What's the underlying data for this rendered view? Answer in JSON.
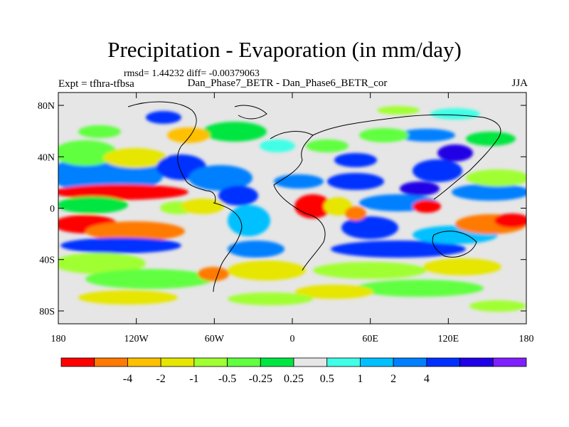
{
  "title": "Precipitation - Evaporation (in mm/day)",
  "stats": "rmsd= 1.44232 diff= -0.00379063",
  "experiment": "Expt = tfhra-tfbsa",
  "subtitle": "Dan_Phase7_BETR - Dan_Phase6_BETR_cor",
  "season": "JJA",
  "map": {
    "background_color": "#e6e6e6",
    "lat_ticks": [
      {
        "label": "80N",
        "lat": 80
      },
      {
        "label": "40N",
        "lat": 40
      },
      {
        "label": "0",
        "lat": 0
      },
      {
        "label": "40S",
        "lat": -40
      },
      {
        "label": "80S",
        "lat": -80
      }
    ],
    "lon_ticks": [
      {
        "label": "180",
        "lon": -180
      },
      {
        "label": "120W",
        "lon": -120
      },
      {
        "label": "60W",
        "lon": -60
      },
      {
        "label": "0",
        "lon": 0
      },
      {
        "label": "60E",
        "lon": 60
      },
      {
        "label": "120E",
        "lon": 120
      },
      {
        "label": "180",
        "lon": 180
      }
    ]
  },
  "colorbar": {
    "colors": [
      "#ff0000",
      "#ff7a00",
      "#ffc000",
      "#e6e600",
      "#a0ff30",
      "#60ff40",
      "#00e640",
      "#e6e6e6",
      "#40ffe6",
      "#00c0ff",
      "#0080ff",
      "#0030ff",
      "#2000e6",
      "#8020ff"
    ],
    "labels": [
      "-4",
      "-2",
      "-1",
      "-0.5",
      "-0.25",
      "0.25",
      "0.5",
      "1",
      "2",
      "4"
    ]
  }
}
